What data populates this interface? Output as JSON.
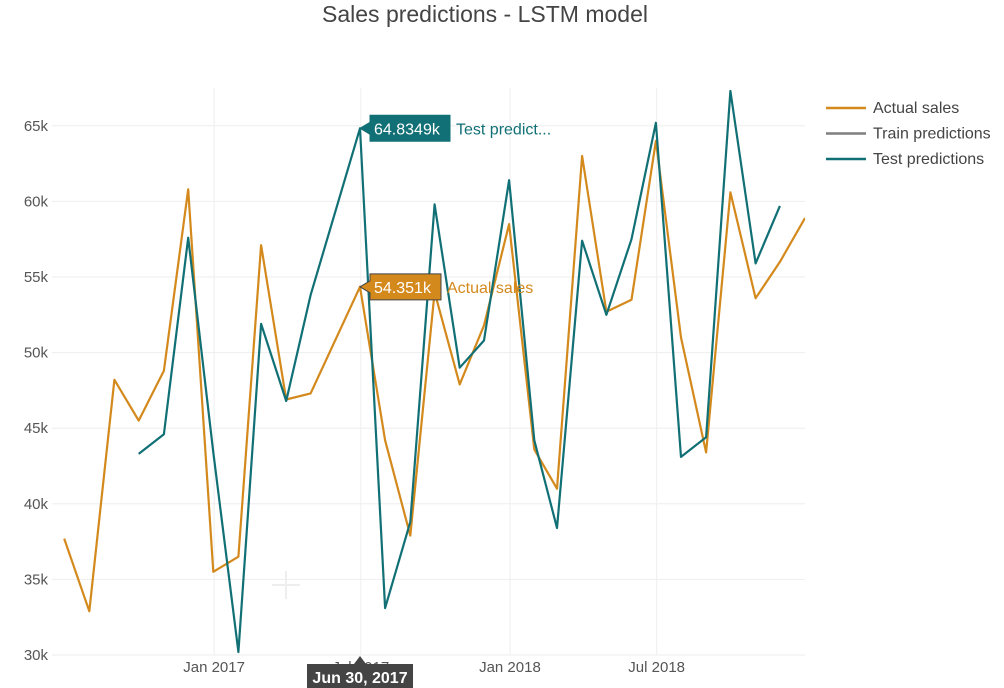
{
  "chart_data": {
    "type": "line",
    "title": "Sales predictions - LSTM model",
    "xlabel": "",
    "ylabel": "",
    "x_ticks": [
      "Jan 2017",
      "Jul 2017",
      "Jan 2018",
      "Jul 2018"
    ],
    "y_ticks": [
      "30k",
      "35k",
      "40k",
      "45k",
      "50k",
      "55k",
      "60k",
      "65k"
    ],
    "ylim": [
      30000,
      67500
    ],
    "xlim": [
      "2016-06-15",
      "2018-12-31"
    ],
    "grid": true,
    "legend_position": "top-right",
    "series": [
      {
        "name": "Actual sales",
        "color": "#d4891c",
        "points": [
          [
            "2016-06-30",
            37700
          ],
          [
            "2016-07-31",
            32900
          ],
          [
            "2016-08-31",
            48200
          ],
          [
            "2016-09-30",
            45500
          ],
          [
            "2016-10-31",
            48800
          ],
          [
            "2016-11-30",
            60800
          ],
          [
            "2016-12-31",
            35500
          ],
          [
            "2017-01-31",
            36500
          ],
          [
            "2017-02-28",
            57100
          ],
          [
            "2017-03-31",
            46900
          ],
          [
            "2017-04-30",
            47300
          ],
          [
            "2017-06-30",
            54351
          ],
          [
            "2017-07-31",
            44200
          ],
          [
            "2017-08-31",
            37900
          ],
          [
            "2017-09-30",
            54000
          ],
          [
            "2017-10-31",
            47900
          ],
          [
            "2017-11-30",
            51800
          ],
          [
            "2017-12-31",
            58500
          ],
          [
            "2018-01-31",
            43600
          ],
          [
            "2018-02-28",
            41000
          ],
          [
            "2018-03-31",
            63000
          ],
          [
            "2018-04-30",
            52700
          ],
          [
            "2018-05-31",
            53500
          ],
          [
            "2018-06-30",
            64000
          ],
          [
            "2018-07-31",
            51000
          ],
          [
            "2018-08-31",
            43400
          ],
          [
            "2018-09-30",
            60600
          ],
          [
            "2018-10-31",
            53600
          ],
          [
            "2018-11-30",
            56000
          ],
          [
            "2018-12-31",
            58900
          ]
        ]
      },
      {
        "name": "Train predictions",
        "color": "#7f7f7f",
        "points": []
      },
      {
        "name": "Test predictions",
        "color": "#117075",
        "points": [
          [
            "2016-09-30",
            43300
          ],
          [
            "2016-10-31",
            44600
          ],
          [
            "2016-11-30",
            57600
          ],
          [
            "2016-12-31",
            43400
          ],
          [
            "2017-01-31",
            30200
          ],
          [
            "2017-02-28",
            51900
          ],
          [
            "2017-03-31",
            46800
          ],
          [
            "2017-04-30",
            53800
          ],
          [
            "2017-06-30",
            64835
          ],
          [
            "2017-07-31",
            33100
          ],
          [
            "2017-08-31",
            38800
          ],
          [
            "2017-09-30",
            59800
          ],
          [
            "2017-10-31",
            49000
          ],
          [
            "2017-11-30",
            50800
          ],
          [
            "2017-12-31",
            61400
          ],
          [
            "2018-01-31",
            44200
          ],
          [
            "2018-02-28",
            38400
          ],
          [
            "2018-03-31",
            57400
          ],
          [
            "2018-04-30",
            52500
          ],
          [
            "2018-05-31",
            57500
          ],
          [
            "2018-06-30",
            65200
          ],
          [
            "2018-07-31",
            43100
          ],
          [
            "2018-08-31",
            44400
          ],
          [
            "2018-09-30",
            67300
          ],
          [
            "2018-10-31",
            55900
          ],
          [
            "2018-11-30",
            59700
          ]
        ]
      }
    ],
    "hover": {
      "x_label": "Jun 30, 2017",
      "labels": [
        {
          "series": "Test predictions",
          "value": "64.8349k",
          "name": "Test predict...",
          "value_num": 64835,
          "date": "2017-06-30"
        },
        {
          "series": "Actual sales",
          "value": "54.351k",
          "name": "Actual sales",
          "value_num": 54351,
          "date": "2017-06-30"
        }
      ]
    }
  }
}
